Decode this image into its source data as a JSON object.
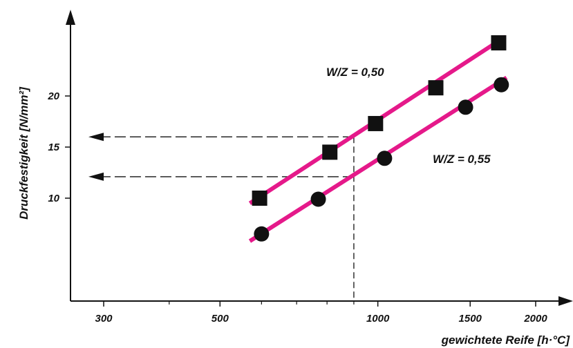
{
  "chart_data": {
    "type": "scatter",
    "title": "",
    "xlabel": "gewichtete Reife [h·°C]",
    "ylabel": "Druckfestigkeit [N/mm²]",
    "x_scale": "log",
    "xlim": [
      220,
      2400
    ],
    "ylim": [
      0,
      30
    ],
    "x_ticks": [
      300,
      500,
      1000,
      1500,
      2000
    ],
    "x_tick_labels": [
      "300",
      "500",
      "1000",
      "1500",
      "2000"
    ],
    "y_ticks": [
      10,
      15,
      20
    ],
    "y_tick_labels": [
      "10",
      "15",
      "20"
    ],
    "grid": false,
    "line_color": "#e5198a",
    "series": [
      {
        "name": "W/Z = 0,50",
        "marker": "square",
        "x": [
          595,
          810,
          990,
          1290,
          1700
        ],
        "y": [
          10,
          14.5,
          17.3,
          20.8,
          25.2
        ],
        "fit_line": {
          "x": [
            570,
            1750
          ],
          "y": [
            9.5,
            25.8
          ]
        }
      },
      {
        "name": "W/Z = 0,55",
        "marker": "circle",
        "x": [
          600,
          770,
          1030,
          1470,
          1720
        ],
        "y": [
          6.5,
          9.9,
          13.9,
          18.9,
          21.1
        ],
        "fit_line": {
          "x": [
            570,
            1760
          ],
          "y": [
            5.8,
            21.8
          ]
        }
      }
    ],
    "annotations": [
      {
        "type": "vertical-dashed",
        "x": 900,
        "y_from": 0,
        "y_to": 16
      },
      {
        "type": "arrow-dashed",
        "y": 16,
        "x_from": 900,
        "x_to": 260
      },
      {
        "type": "arrow-dashed",
        "y": 12.1,
        "x_from": 900,
        "x_to": 260
      }
    ]
  }
}
